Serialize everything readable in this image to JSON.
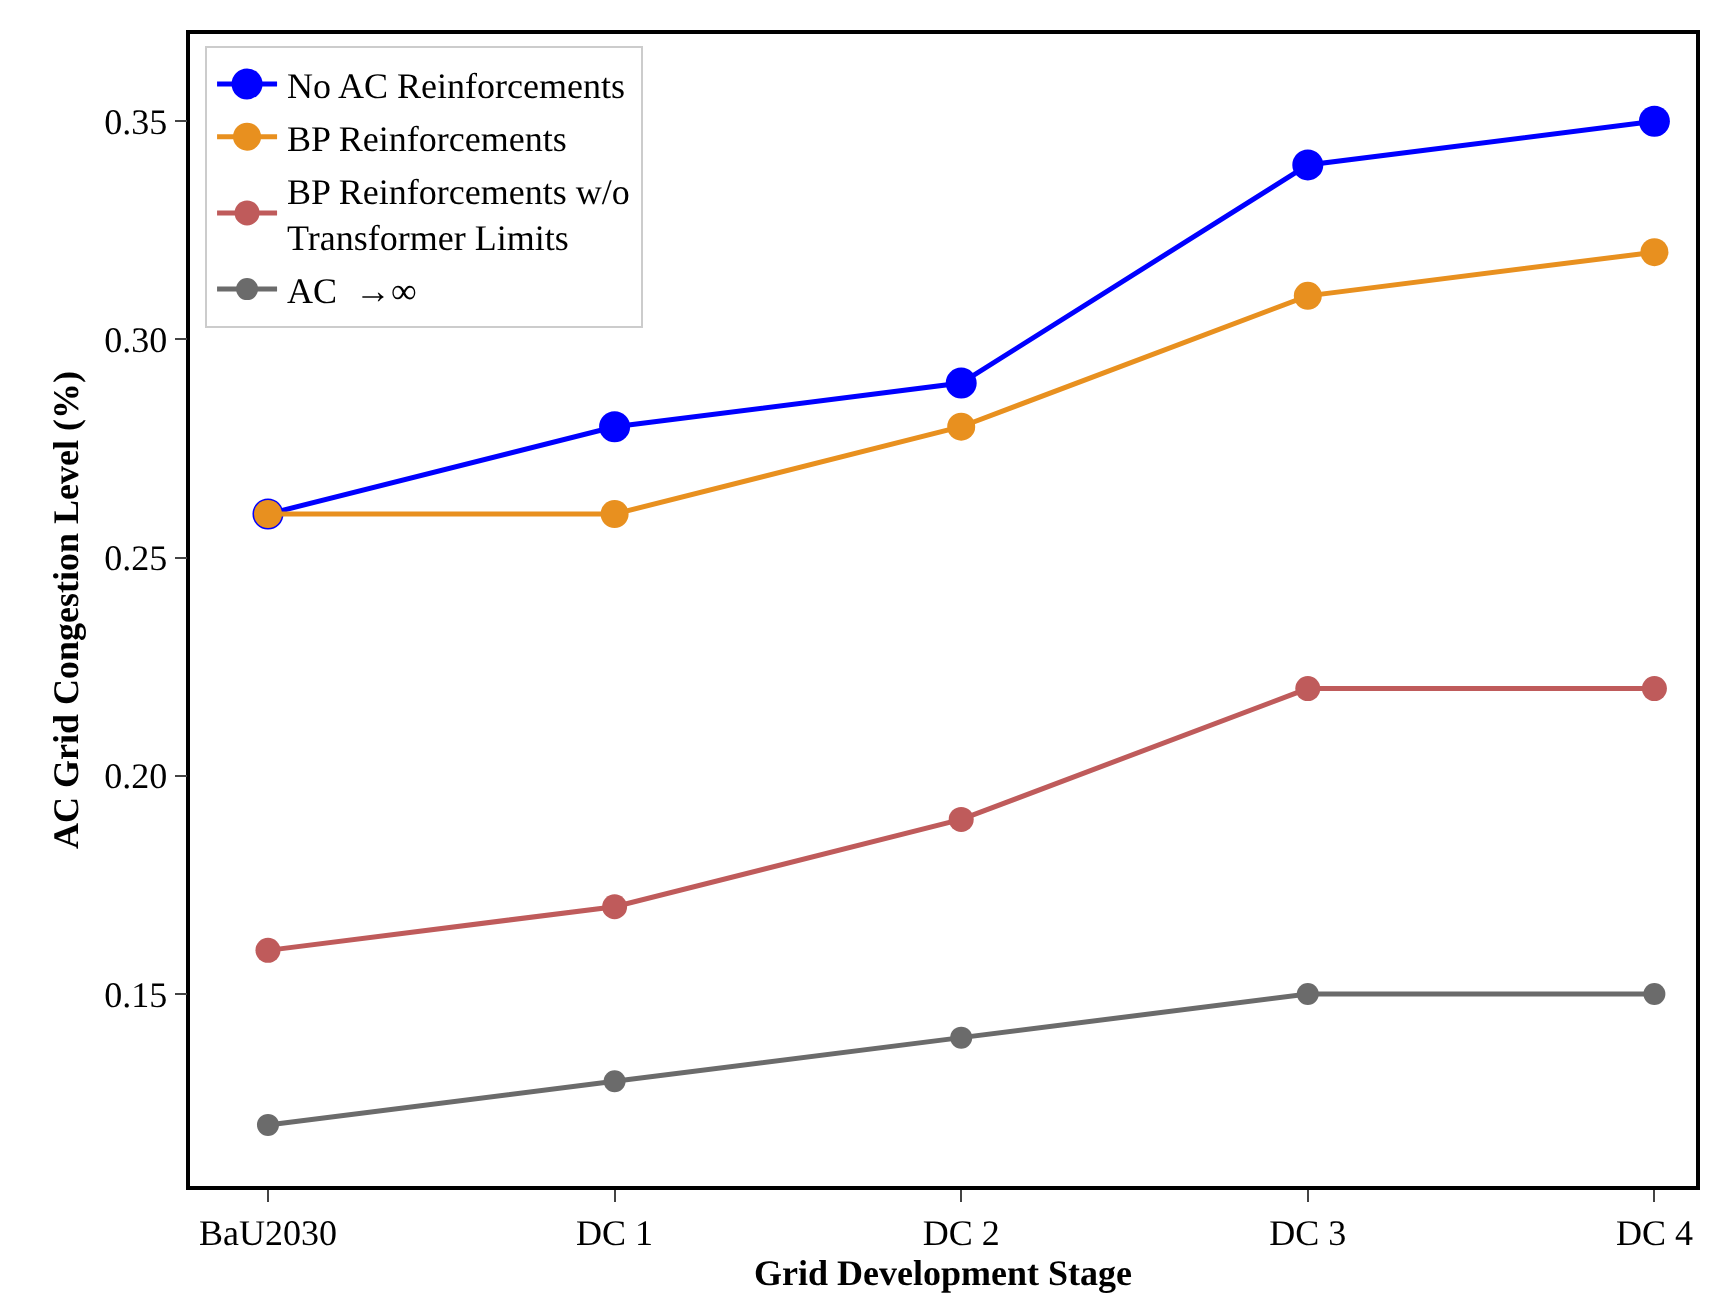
{
  "chart_data": {
    "type": "line",
    "xlabel": "Grid Development Stage",
    "ylabel": "AC Grid Congestion Level (%)",
    "categories": [
      "BaU2030",
      "DC 1",
      "DC 2",
      "DC 3",
      "DC 4"
    ],
    "series": [
      {
        "name": "No AC Reinforcements",
        "color": "#0000ff",
        "values": [
          0.26,
          0.28,
          0.29,
          0.34,
          0.35
        ]
      },
      {
        "name": "BP Reinforcements",
        "color": "#e8901f",
        "values": [
          0.26,
          0.26,
          0.28,
          0.31,
          0.32
        ]
      },
      {
        "name": "BP Reinforcements w/o\nTransformer Limits",
        "color": "#bf5b5b",
        "values": [
          0.16,
          0.17,
          0.19,
          0.22,
          0.22
        ]
      },
      {
        "name": "AC  →∞",
        "color": "#6b6b6b",
        "values": [
          0.12,
          0.13,
          0.14,
          0.15,
          0.15
        ]
      }
    ],
    "ylim": [
      0.106,
      0.37
    ],
    "yticks": [
      0.15,
      {
        "value": 0.2,
        "label": "0.20"
      },
      0.25,
      {
        "value": 0.3,
        "label": "0.30"
      },
      0.35
    ],
    "legend": "top left",
    "marker": "circle",
    "line_style": "solid",
    "grid": false
  }
}
